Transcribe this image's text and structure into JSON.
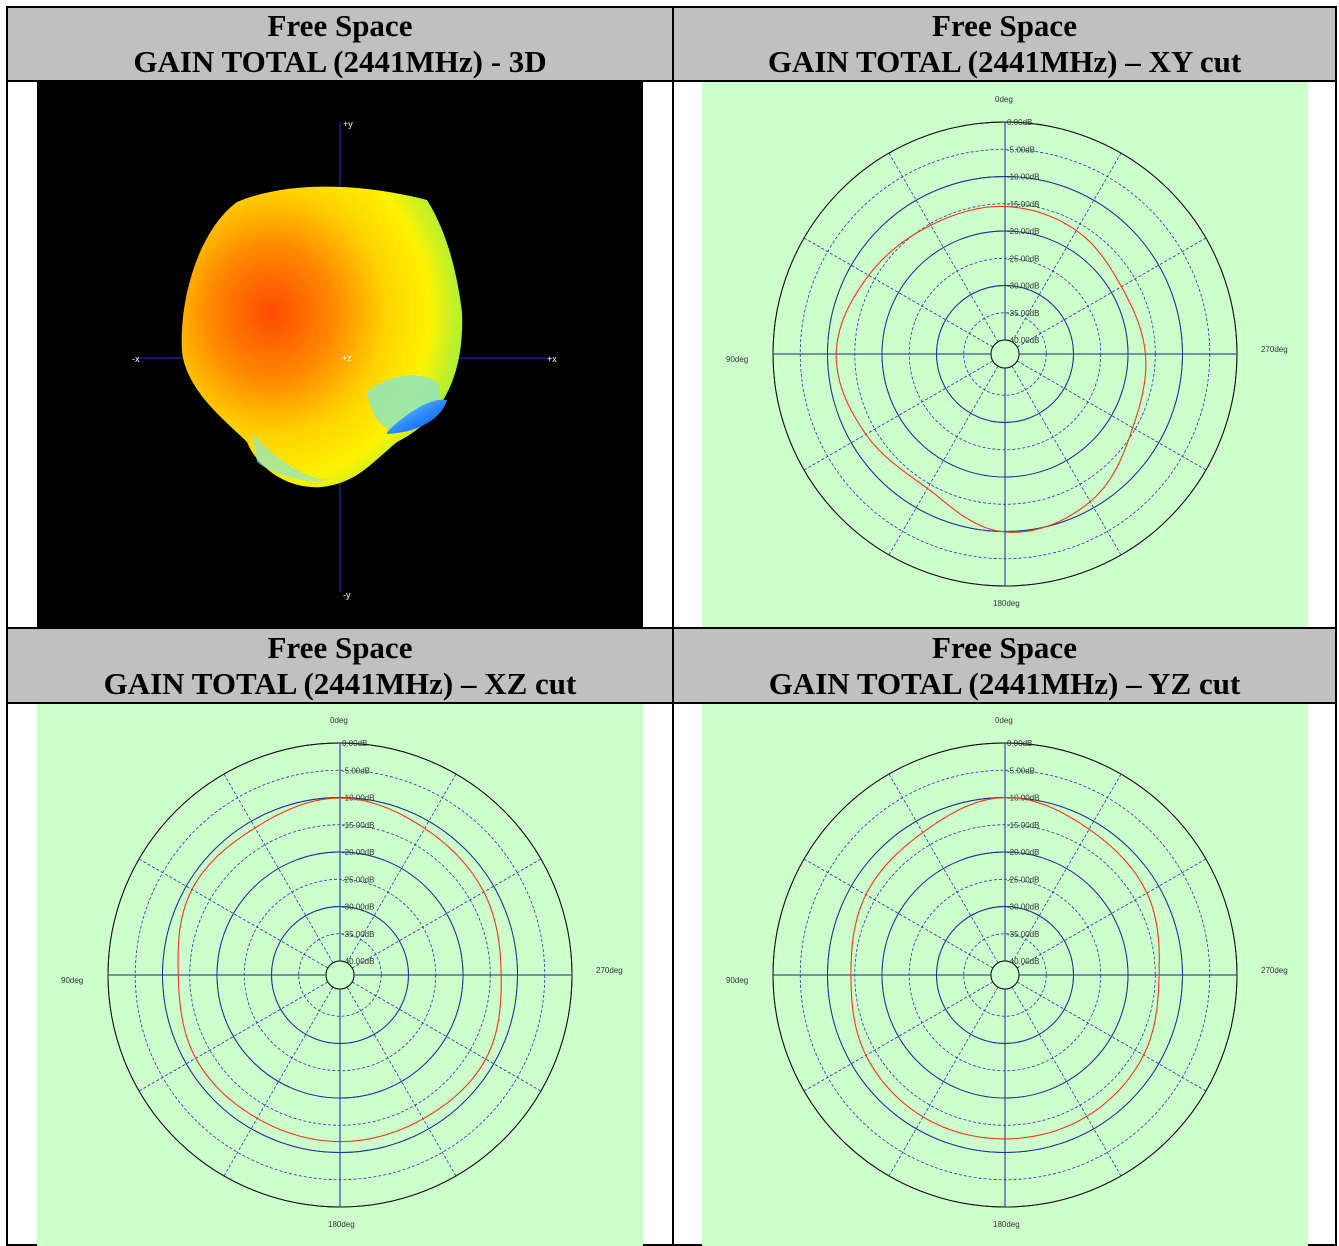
{
  "panels": [
    {
      "line1": "Free Space",
      "line2": "GAIN TOTAL (2441MHz) - 3D"
    },
    {
      "line1": "Free Space",
      "line2": "GAIN TOTAL (2441MHz) – XY cut"
    },
    {
      "line1": "Free Space",
      "line2": "GAIN TOTAL (2441MHz) – XZ cut"
    },
    {
      "line1": "Free Space",
      "line2": "GAIN TOTAL (2441MHz) – YZ cut"
    }
  ],
  "axes3d": {
    "plus_y": "+y",
    "minus_y": "-y",
    "plus_x": "+x",
    "minus_x": "-x",
    "plus_z": "+z"
  },
  "colors": {
    "trace": "#e83a1a",
    "rings": "#1a3aa0",
    "plot_bg": "#ccffcc",
    "header_bg": "#c0c0c0"
  },
  "chart_data": [
    {
      "type": "polar",
      "title": "GAIN TOTAL (2441MHz) – XY cut",
      "angle_labels": [
        "0deg",
        "90deg",
        "180deg",
        "270deg"
      ],
      "radial_labels": [
        "0.00dB",
        "-5.00dB",
        "-10.00dB",
        "-15.00dB",
        "-20.00dB",
        "-25.00dB",
        "-30.00dB",
        "-35.00dB",
        "-40.00dB"
      ],
      "rlim": [
        -40,
        0
      ],
      "angles_deg": [
        0,
        30,
        60,
        90,
        120,
        150,
        180,
        210,
        240,
        270,
        300,
        330
      ],
      "gain_db": [
        -15.5,
        -15.3,
        -13.7,
        -11.6,
        -13.1,
        -14.1,
        -9.9,
        -11.3,
        -15.5,
        -16.8,
        -17.9,
        -16.4
      ]
    },
    {
      "type": "polar",
      "title": "GAIN TOTAL (2441MHz) – XZ cut",
      "angle_labels": [
        "0deg",
        "90deg",
        "180deg",
        "270deg"
      ],
      "radial_labels": [
        "0.00dB",
        "-5.00dB",
        "-10.00dB",
        "-15.00dB",
        "-20.00dB",
        "-25.00dB",
        "-30.00dB",
        "-35.00dB",
        "-40.00dB"
      ],
      "rlim": [
        -40,
        0
      ],
      "angles_deg": [
        0,
        30,
        60,
        90,
        120,
        150,
        180,
        210,
        240,
        270,
        300,
        330
      ],
      "gain_db": [
        -10.1,
        -11.4,
        -11.2,
        -12.9,
        -12.0,
        -12.2,
        -12.0,
        -12.1,
        -11.7,
        -13.0,
        -12.1,
        -11.5
      ]
    },
    {
      "type": "polar",
      "title": "GAIN TOTAL (2441MHz) – YZ cut",
      "angle_labels": [
        "0deg",
        "90deg",
        "180deg",
        "270deg"
      ],
      "radial_labels": [
        "0.00dB",
        "-5.00dB",
        "-10.00dB",
        "-15.00dB",
        "-20.00dB",
        "-25.00dB",
        "-30.00dB",
        "-35.00dB",
        "-40.00dB"
      ],
      "rlim": [
        -40,
        0
      ],
      "angles_deg": [
        0,
        30,
        60,
        90,
        120,
        150,
        180,
        210,
        240,
        270,
        300,
        330
      ],
      "gain_db": [
        -10.0,
        -12.4,
        -13.1,
        -14.3,
        -13.1,
        -12.5,
        -12.5,
        -12.6,
        -13.2,
        -14.3,
        -12.5,
        -11.7
      ]
    }
  ]
}
